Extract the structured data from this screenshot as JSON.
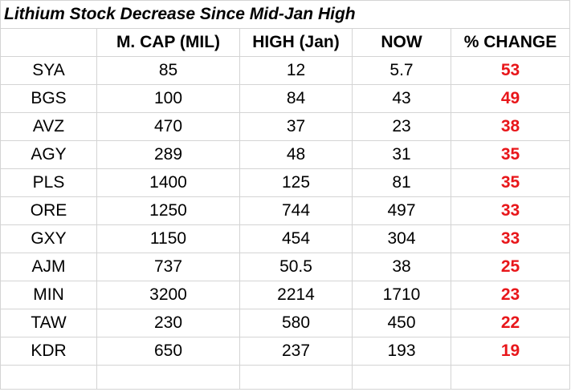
{
  "chart_data": {
    "type": "table",
    "title": "Lithium Stock Decrease Since Mid-Jan High",
    "columns": [
      "",
      "M. CAP (MIL)",
      "HIGH (Jan)",
      "NOW",
      "% CHANGE"
    ],
    "rows": [
      {
        "ticker": "SYA",
        "mcap": "85",
        "high": "12",
        "now": "5.7",
        "change": "53"
      },
      {
        "ticker": "BGS",
        "mcap": "100",
        "high": "84",
        "now": "43",
        "change": "49"
      },
      {
        "ticker": "AVZ",
        "mcap": "470",
        "high": "37",
        "now": "23",
        "change": "38"
      },
      {
        "ticker": "AGY",
        "mcap": "289",
        "high": "48",
        "now": "31",
        "change": "35"
      },
      {
        "ticker": "PLS",
        "mcap": "1400",
        "high": "125",
        "now": "81",
        "change": "35"
      },
      {
        "ticker": "ORE",
        "mcap": "1250",
        "high": "744",
        "now": "497",
        "change": "33"
      },
      {
        "ticker": "GXY",
        "mcap": "1150",
        "high": "454",
        "now": "304",
        "change": "33"
      },
      {
        "ticker": "AJM",
        "mcap": "737",
        "high": "50.5",
        "now": "38",
        "change": "25"
      },
      {
        "ticker": "MIN",
        "mcap": "3200",
        "high": "2214",
        "now": "1710",
        "change": "23"
      },
      {
        "ticker": "TAW",
        "mcap": "230",
        "high": "580",
        "now": "450",
        "change": "22"
      },
      {
        "ticker": "KDR",
        "mcap": "650",
        "high": "237",
        "now": "193",
        "change": "19"
      }
    ],
    "colors": {
      "change_text": "#e8161a",
      "grid": "#d4d4d4"
    }
  }
}
